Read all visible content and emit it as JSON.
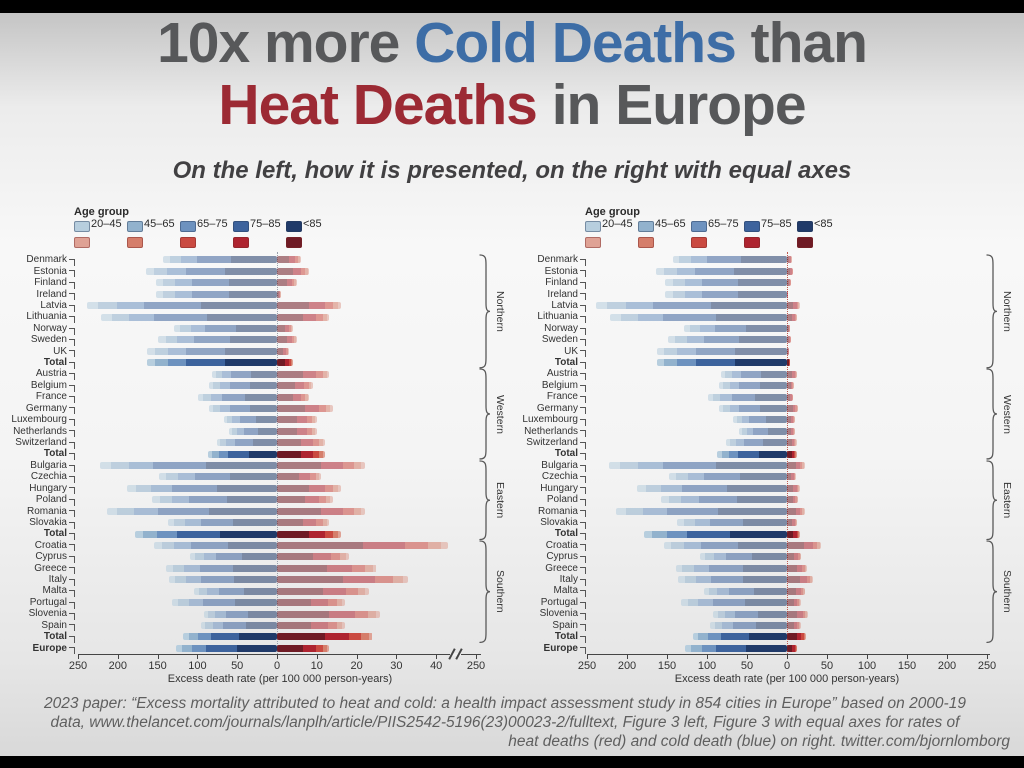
{
  "title": {
    "line1": {
      "prefix": "10x more ",
      "cold": "Cold Deaths",
      "suffix": " than"
    },
    "line2": {
      "heat": "Heat Deaths",
      "suffix": " in Europe"
    },
    "cold_color": "#3d6da6",
    "heat_color": "#9c2a34",
    "gray_color": "#57585a"
  },
  "subtitle": {
    "text": "On the left, how it is presented, on the right with equal axes"
  },
  "footer": {
    "line1": "2023 paper: “Excess mortality attributed to heat and cold: a health impact assessment study in 854 cities in Europe” based on 2000-19",
    "line2": "data, www.thelancet.com/journals/lanplh/article/PIIS2542-5196(23)00023-2/fulltext, Figure 3 left, Figure 3 with equal axes for rates of",
    "line3": "heat deaths (red) and cold death (blue) on right. twitter.com/bjornlomborg"
  },
  "legend": {
    "title": "Age group",
    "age_groups": [
      "20–45",
      "45–65",
      "65–75",
      "75–85",
      "<85"
    ],
    "cold_colors": [
      "#b7cede",
      "#92b2cd",
      "#6d92bf",
      "#3d639d",
      "#203a69"
    ],
    "heat_colors": [
      "#dfa295",
      "#d57e6b",
      "#ca4a41",
      "#ae2430",
      "#6f1b25"
    ]
  },
  "chart_data": {
    "type": "bar",
    "subtype": "diverging stacked horizontal bars, two panels (left: unequal axes as presented; right: equal axes)",
    "xlabel": "Excess death rate (per 100 000 person-years)",
    "age_groups": [
      "20–45",
      "45–65",
      "65–75",
      "75–85",
      "<85"
    ],
    "age_share_cold_approx": [
      0.06,
      0.1,
      0.14,
      0.3,
      0.4
    ],
    "age_share_heat_approx": [
      0.04,
      0.08,
      0.13,
      0.25,
      0.5
    ],
    "series_names": [
      "Cold excess deaths (blue, left of zero)",
      "Heat excess deaths (red, right of zero)"
    ],
    "rows": [
      {
        "label": "Denmark",
        "region": "Northern",
        "cold": 143,
        "heat": 6,
        "emphasis": false
      },
      {
        "label": "Estonia",
        "region": "Northern",
        "cold": 164,
        "heat": 8,
        "emphasis": false
      },
      {
        "label": "Finland",
        "region": "Northern",
        "cold": 152,
        "heat": 5,
        "emphasis": false
      },
      {
        "label": "Ireland",
        "region": "Northern",
        "cold": 152,
        "heat": 1,
        "emphasis": false
      },
      {
        "label": "Latvia",
        "region": "Northern",
        "cold": 239,
        "heat": 16,
        "emphasis": false
      },
      {
        "label": "Lithuania",
        "region": "Northern",
        "cold": 221,
        "heat": 13,
        "emphasis": false
      },
      {
        "label": "Norway",
        "region": "Northern",
        "cold": 129,
        "heat": 4,
        "emphasis": false
      },
      {
        "label": "Sweden",
        "region": "Northern",
        "cold": 149,
        "heat": 5,
        "emphasis": false
      },
      {
        "label": "UK",
        "region": "Northern",
        "cold": 163,
        "heat": 3,
        "emphasis": false
      },
      {
        "label": "Total",
        "region": "Northern",
        "cold": 163,
        "heat": 4,
        "emphasis": true
      },
      {
        "label": "Austria",
        "region": "Western",
        "cold": 82,
        "heat": 13,
        "emphasis": false
      },
      {
        "label": "Belgium",
        "region": "Western",
        "cold": 85,
        "heat": 9,
        "emphasis": false
      },
      {
        "label": "France",
        "region": "Western",
        "cold": 99,
        "heat": 8,
        "emphasis": false
      },
      {
        "label": "Germany",
        "region": "Western",
        "cold": 85,
        "heat": 14,
        "emphasis": false
      },
      {
        "label": "Luxembourg",
        "region": "Western",
        "cold": 67,
        "heat": 10,
        "emphasis": false
      },
      {
        "label": "Netherlands",
        "region": "Western",
        "cold": 60,
        "heat": 10,
        "emphasis": false
      },
      {
        "label": "Switzerland",
        "region": "Western",
        "cold": 76,
        "heat": 12,
        "emphasis": false
      },
      {
        "label": "Total",
        "region": "Western",
        "cold": 87,
        "heat": 12,
        "emphasis": true
      },
      {
        "label": "Bulgaria",
        "region": "Eastern",
        "cold": 222,
        "heat": 22,
        "emphasis": false
      },
      {
        "label": "Czechia",
        "region": "Eastern",
        "cold": 148,
        "heat": 11,
        "emphasis": false
      },
      {
        "label": "Hungary",
        "region": "Eastern",
        "cold": 188,
        "heat": 16,
        "emphasis": false
      },
      {
        "label": "Poland",
        "region": "Eastern",
        "cold": 157,
        "heat": 14,
        "emphasis": false
      },
      {
        "label": "Romania",
        "region": "Eastern",
        "cold": 214,
        "heat": 22,
        "emphasis": false
      },
      {
        "label": "Slovakia",
        "region": "Eastern",
        "cold": 137,
        "heat": 13,
        "emphasis": false
      },
      {
        "label": "Total",
        "region": "Eastern",
        "cold": 179,
        "heat": 16,
        "emphasis": true
      },
      {
        "label": "Croatia",
        "region": "Southern",
        "cold": 154,
        "heat": 43,
        "emphasis": false
      },
      {
        "label": "Cyprus",
        "region": "Southern",
        "cold": 109,
        "heat": 18,
        "emphasis": false
      },
      {
        "label": "Greece",
        "region": "Southern",
        "cold": 139,
        "heat": 25,
        "emphasis": false
      },
      {
        "label": "Italy",
        "region": "Southern",
        "cold": 136,
        "heat": 33,
        "emphasis": false
      },
      {
        "label": "Malta",
        "region": "Southern",
        "cold": 104,
        "heat": 23,
        "emphasis": false
      },
      {
        "label": "Portugal",
        "region": "Southern",
        "cold": 132,
        "heat": 17,
        "emphasis": false
      },
      {
        "label": "Slovenia",
        "region": "Southern",
        "cold": 92,
        "heat": 26,
        "emphasis": false
      },
      {
        "label": "Spain",
        "region": "Southern",
        "cold": 96,
        "heat": 17,
        "emphasis": false
      },
      {
        "label": "Total",
        "region": "Southern",
        "cold": 118,
        "heat": 24,
        "emphasis": true
      },
      {
        "label": "Europe",
        "region": "Europe",
        "cold": 127,
        "heat": 13,
        "emphasis": true
      }
    ],
    "region_braces": [
      {
        "name": "Northern",
        "first_row": 0,
        "last_row": 9
      },
      {
        "name": "Western",
        "first_row": 10,
        "last_row": 17
      },
      {
        "name": "Eastern",
        "first_row": 18,
        "last_row": 24
      },
      {
        "name": "Southern",
        "first_row": 25,
        "last_row": 33
      }
    ],
    "panels": {
      "left": {
        "description": "as presented: cold axis 0-250, heat axis 0-40 stretched 10x, axis break before 250",
        "cold_ticks": [
          "250",
          "200",
          "150",
          "100",
          "50",
          "0"
        ],
        "heat_ticks": [
          "10",
          "20",
          "30",
          "40"
        ],
        "far_tick_after_break": "250",
        "axis_label": "Excess death rate (per 100 000 person-years)",
        "zero_line_color": "#9aa0ac"
      },
      "right": {
        "description": "equal axes: both sides 0-250",
        "ticks": [
          "250",
          "200",
          "150",
          "100",
          "50",
          "0",
          "50",
          "100",
          "150",
          "200",
          "250"
        ],
        "axis_label": "Excess death rate (per 100 000 person-years)",
        "zero_line_color": "#c0584e"
      }
    }
  }
}
